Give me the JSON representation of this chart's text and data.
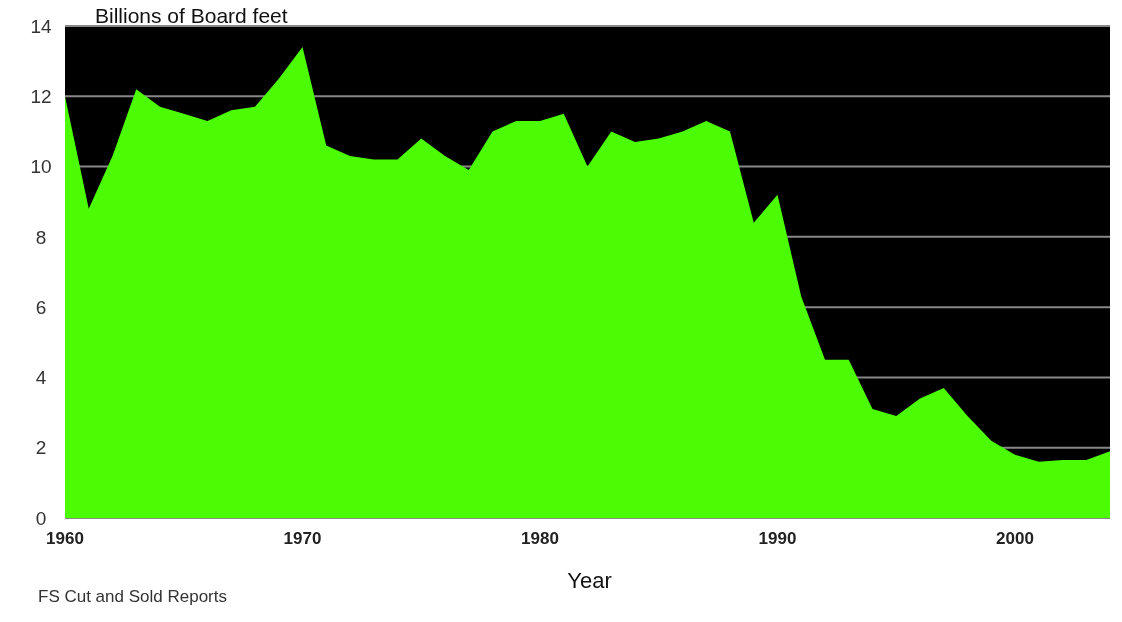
{
  "chart_data": {
    "type": "area",
    "ylabel": "Billions of Board feet",
    "xlabel": "Year",
    "annotations": [
      "FS Cut and Sold Reports"
    ],
    "x": [
      1960,
      1961,
      1962,
      1963,
      1964,
      1965,
      1966,
      1967,
      1968,
      1969,
      1970,
      1971,
      1972,
      1973,
      1974,
      1975,
      1976,
      1977,
      1978,
      1979,
      1980,
      1981,
      1982,
      1983,
      1984,
      1985,
      1986,
      1987,
      1988,
      1989,
      1990,
      1991,
      1992,
      1993,
      1994,
      1995,
      1996,
      1997,
      1998,
      1999,
      2000,
      2001,
      2002,
      2003,
      2004
    ],
    "series": [
      {
        "color": "#4cfc04",
        "values": [
          12.0,
          8.8,
          10.3,
          12.2,
          11.7,
          11.5,
          11.3,
          11.6,
          11.7,
          12.5,
          13.4,
          10.6,
          10.3,
          10.2,
          10.2,
          10.8,
          10.3,
          9.9,
          11.0,
          11.3,
          11.3,
          11.5,
          10.0,
          11.0,
          10.7,
          10.8,
          11.0,
          11.3,
          11.0,
          8.4,
          9.2,
          6.3,
          4.5,
          4.5,
          3.1,
          2.9,
          3.4,
          3.7,
          2.9,
          2.2,
          1.8,
          1.6,
          1.65,
          1.65,
          1.9
        ]
      }
    ],
    "xlim": [
      1960,
      2004
    ],
    "xticks": [
      1960,
      1970,
      1980,
      1990,
      2000
    ],
    "ylim": [
      0,
      14
    ],
    "yticks": [
      0,
      2,
      4,
      6,
      8,
      10,
      12,
      14
    ],
    "grid": "y"
  }
}
